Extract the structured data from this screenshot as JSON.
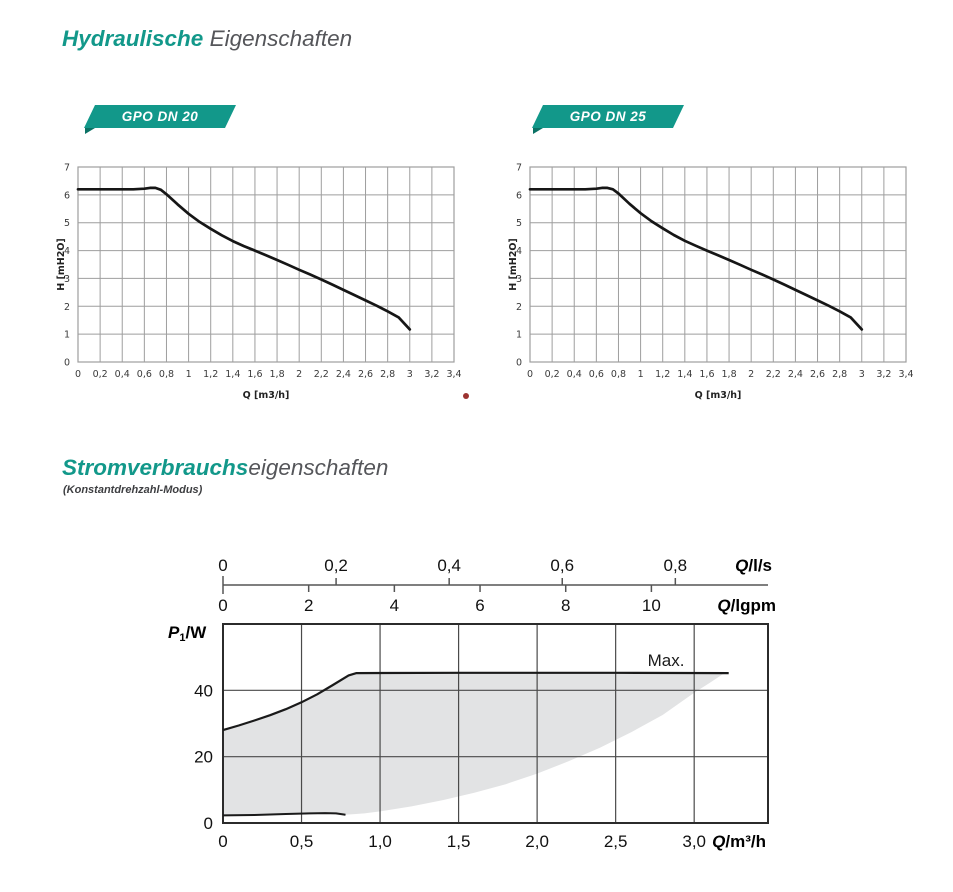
{
  "section_hydraulic": {
    "title_accent": "Hydraulische",
    "title_rest": " Eigenschaften"
  },
  "section_power": {
    "title_accent": "Stromverbrauchs",
    "title_rest": "eigenschaften",
    "subtitle": "(Konstantdrehzahl-Modus)"
  },
  "colors": {
    "accent_teal": "#12988a",
    "banner_fold": "#0b7265",
    "title_gray": "#55565a",
    "grid_light": "#9e9e9e",
    "grid_dark": "#4a4a4a",
    "frame_dark": "#2b2b2b",
    "curve": "#161616",
    "region_fill": "#e2e3e4",
    "axis_line_gray": "#7f7f7f",
    "red_dot": "#9c3331"
  },
  "chart_data": [
    {
      "type": "line",
      "title": "GPO DN 20",
      "xlabel": "Q [m3/h]",
      "ylabel": "H [mH2O]",
      "xlim": [
        0,
        3.4
      ],
      "ylim": [
        0,
        7
      ],
      "grid": true,
      "x_ticks": [
        0,
        0.2,
        0.4,
        0.6,
        0.8,
        1,
        1.2,
        1.4,
        1.6,
        1.8,
        2,
        2.2,
        2.4,
        2.6,
        2.8,
        3,
        3.2,
        3.4
      ],
      "x_tick_labels": [
        "0",
        "0,2",
        "0,4",
        "0,6",
        "0,8",
        "1",
        "1,2",
        "1,4",
        "1,6",
        "1,8",
        "2",
        "2,2",
        "2,4",
        "2,6",
        "2,8",
        "3",
        "3,2",
        "3,4"
      ],
      "y_ticks": [
        0,
        1,
        2,
        3,
        4,
        5,
        6,
        7
      ],
      "y_tick_labels": [
        "0",
        "1",
        "2",
        "3",
        "4",
        "5",
        "6",
        "7"
      ],
      "series": [
        {
          "name": "H(Q)",
          "points": [
            [
              0,
              6.2
            ],
            [
              0.2,
              6.2
            ],
            [
              0.4,
              6.2
            ],
            [
              0.5,
              6.2
            ],
            [
              0.6,
              6.22
            ],
            [
              0.65,
              6.25
            ],
            [
              0.7,
              6.25
            ],
            [
              0.75,
              6.18
            ],
            [
              0.8,
              6.02
            ],
            [
              0.9,
              5.66
            ],
            [
              1.0,
              5.32
            ],
            [
              1.1,
              5.03
            ],
            [
              1.2,
              4.78
            ],
            [
              1.3,
              4.55
            ],
            [
              1.4,
              4.34
            ],
            [
              1.5,
              4.16
            ],
            [
              1.6,
              4.0
            ],
            [
              1.7,
              3.83
            ],
            [
              1.8,
              3.66
            ],
            [
              1.9,
              3.49
            ],
            [
              2.0,
              3.31
            ],
            [
              2.1,
              3.14
            ],
            [
              2.2,
              2.96
            ],
            [
              2.3,
              2.78
            ],
            [
              2.4,
              2.59
            ],
            [
              2.5,
              2.4
            ],
            [
              2.6,
              2.21
            ],
            [
              2.7,
              2.02
            ],
            [
              2.8,
              1.82
            ],
            [
              2.9,
              1.6
            ],
            [
              3.0,
              1.17
            ]
          ]
        }
      ]
    },
    {
      "type": "line",
      "title": "GPO DN 25",
      "xlabel": "Q [m3/h]",
      "ylabel": "H [mH2O]",
      "xlim": [
        0,
        3.4
      ],
      "ylim": [
        0,
        7
      ],
      "grid": true,
      "x_ticks": [
        0,
        0.2,
        0.4,
        0.6,
        0.8,
        1,
        1.2,
        1.4,
        1.6,
        1.8,
        2,
        2.2,
        2.4,
        2.6,
        2.8,
        3,
        3.2,
        3.4
      ],
      "x_tick_labels": [
        "0",
        "0,2",
        "0,4",
        "0,6",
        "0,8",
        "1",
        "1,2",
        "1,4",
        "1,6",
        "1,8",
        "2",
        "2,2",
        "2,4",
        "2,6",
        "2,8",
        "3",
        "3,2",
        "3,4"
      ],
      "y_ticks": [
        0,
        1,
        2,
        3,
        4,
        5,
        6,
        7
      ],
      "y_tick_labels": [
        "0",
        "1",
        "2",
        "3",
        "4",
        "5",
        "6",
        "7"
      ],
      "series": [
        {
          "name": "H(Q)",
          "points": [
            [
              0,
              6.2
            ],
            [
              0.2,
              6.2
            ],
            [
              0.4,
              6.2
            ],
            [
              0.5,
              6.2
            ],
            [
              0.6,
              6.22
            ],
            [
              0.65,
              6.25
            ],
            [
              0.7,
              6.25
            ],
            [
              0.75,
              6.2
            ],
            [
              0.8,
              6.05
            ],
            [
              0.9,
              5.68
            ],
            [
              1.0,
              5.34
            ],
            [
              1.1,
              5.05
            ],
            [
              1.2,
              4.8
            ],
            [
              1.3,
              4.56
            ],
            [
              1.4,
              4.35
            ],
            [
              1.5,
              4.17
            ],
            [
              1.6,
              4.0
            ],
            [
              1.7,
              3.83
            ],
            [
              1.8,
              3.66
            ],
            [
              1.9,
              3.49
            ],
            [
              2.0,
              3.31
            ],
            [
              2.1,
              3.14
            ],
            [
              2.2,
              2.96
            ],
            [
              2.3,
              2.78
            ],
            [
              2.4,
              2.59
            ],
            [
              2.5,
              2.4
            ],
            [
              2.6,
              2.21
            ],
            [
              2.7,
              2.02
            ],
            [
              2.8,
              1.82
            ],
            [
              2.9,
              1.6
            ],
            [
              3.0,
              1.17
            ]
          ]
        }
      ]
    },
    {
      "type": "area",
      "title": "Stromverbrauch (Konstantdrehzahl-Modus)",
      "xlim": [
        0,
        3.47
      ],
      "ylim": [
        0,
        60
      ],
      "annotation": "Max.",
      "top_axis_ls": {
        "label_sym": "Q",
        "label_unit": "/l/s",
        "ticks": [
          0,
          0.2,
          0.4,
          0.6,
          0.8
        ],
        "tick_labels": [
          "0",
          "0,2",
          "0,4",
          "0,6",
          "0,8"
        ],
        "m3h_per_unit": 3.6
      },
      "top_axis_lgpm": {
        "label_sym": "Q",
        "label_unit": "/lgpm",
        "ticks": [
          0,
          2,
          4,
          6,
          8,
          10
        ],
        "tick_labels": [
          "0",
          "2",
          "4",
          "6",
          "8",
          "10"
        ],
        "m3h_per_unit": 0.27276
      },
      "x_axis": {
        "label_sym": "Q",
        "label_unit": "/m³/h",
        "ticks": [
          0,
          0.5,
          1,
          1.5,
          2,
          2.5,
          3
        ],
        "tick_labels": [
          "0",
          "0,5",
          "1,0",
          "1,5",
          "2,0",
          "2,5",
          "3,0"
        ]
      },
      "y_axis": {
        "label_sym": "P",
        "label_sub": "1",
        "label_unit": "/W",
        "ticks": [
          0,
          20,
          40
        ],
        "tick_labels": [
          "0",
          "20",
          "40"
        ]
      },
      "max_curve": [
        [
          0,
          28
        ],
        [
          0.1,
          29.4
        ],
        [
          0.2,
          30.9
        ],
        [
          0.3,
          32.5
        ],
        [
          0.4,
          34.3
        ],
        [
          0.5,
          36.4
        ],
        [
          0.6,
          38.8
        ],
        [
          0.7,
          41.6
        ],
        [
          0.8,
          44.5
        ],
        [
          0.85,
          45.2
        ],
        [
          1.5,
          45.3
        ],
        [
          2.5,
          45.3
        ],
        [
          3.22,
          45.2
        ]
      ],
      "min_curve": [
        [
          0,
          2.3
        ],
        [
          0.2,
          2.4
        ],
        [
          0.4,
          2.7
        ],
        [
          0.55,
          2.9
        ],
        [
          0.65,
          3.0
        ],
        [
          0.72,
          2.9
        ],
        [
          0.78,
          2.5
        ]
      ],
      "region_lower": [
        [
          0.78,
          2.5
        ],
        [
          0.9,
          2.9
        ],
        [
          1.0,
          3.5
        ],
        [
          1.2,
          5.0
        ],
        [
          1.4,
          6.9
        ],
        [
          1.6,
          9.1
        ],
        [
          1.8,
          11.7
        ],
        [
          2.0,
          14.9
        ],
        [
          2.2,
          18.6
        ],
        [
          2.4,
          22.7
        ],
        [
          2.6,
          27.4
        ],
        [
          2.8,
          32.6
        ],
        [
          3.0,
          39.3
        ],
        [
          3.1,
          42.3
        ],
        [
          3.18,
          44.8
        ],
        [
          3.22,
          45.2
        ]
      ]
    }
  ],
  "marker": {
    "note": "small red dot below first chart"
  }
}
